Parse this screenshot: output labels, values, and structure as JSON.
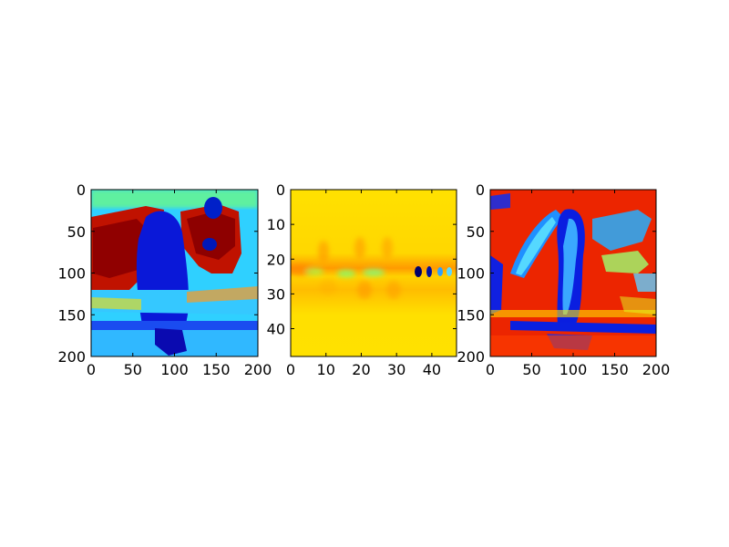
{
  "chart_data": [
    {
      "type": "heatmap",
      "colormap": "jet",
      "xticks": [
        0,
        50,
        100,
        150,
        200
      ],
      "yticks": [
        0,
        50,
        100,
        150,
        200
      ],
      "xlim": [
        0,
        200
      ],
      "ylim": [
        200,
        0
      ],
      "grid": false
    },
    {
      "type": "heatmap",
      "colormap": "jet",
      "xticks": [
        0,
        10,
        20,
        30,
        40
      ],
      "yticks": [
        0,
        10,
        20,
        30,
        40
      ],
      "xlim": [
        0,
        47
      ],
      "ylim": [
        48,
        0
      ],
      "grid": false
    },
    {
      "type": "heatmap",
      "colormap": "jet",
      "xticks": [
        0,
        50,
        100,
        150,
        200
      ],
      "yticks": [
        0,
        50,
        100,
        150,
        200
      ],
      "xlim": [
        0,
        200
      ],
      "ylim": [
        200,
        0
      ],
      "grid": false
    }
  ]
}
